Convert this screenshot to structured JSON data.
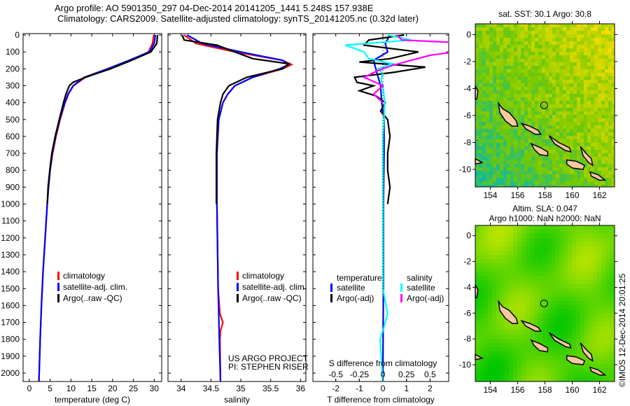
{
  "title": {
    "line1": "Argo profile: AO 5901350_297 04-Dec-2014 20141205_1441 5.248S 157.938E",
    "line2": "Climatology: CARS2009. Satellite-adjusted climatology: synTS_20141205.nc (0.32d later)"
  },
  "timestamp": "©IMOS 12-Dec-2014 20:01:25",
  "colors": {
    "climatology": "#ff0000",
    "satellite": "#0000ff",
    "argo": "#000000",
    "sal_satellite": "#00ffff",
    "sal_argo": "#ff00ff",
    "land": "#f8c8a0"
  },
  "chart_data": {
    "depth_axis": {
      "ylim": [
        0,
        2150
      ],
      "ticks": [
        0,
        100,
        200,
        300,
        400,
        500,
        600,
        700,
        800,
        900,
        1000,
        1100,
        1200,
        1300,
        1400,
        1500,
        1600,
        1700,
        1800,
        1900,
        2000
      ]
    },
    "panels": [
      {
        "id": "temperature",
        "type": "line",
        "xlabel": "temperature (deg C)",
        "xlim": [
          -1.5,
          31.8
        ],
        "xticks": [
          0,
          5,
          10,
          15,
          20,
          25,
          30
        ],
        "legend": [
          "climatology",
          "satellite-adj. clim.",
          "Argo(..raw -QC)"
        ],
        "series": [
          {
            "name": "climatology",
            "color": "#ff0000",
            "depth": [
              0,
              50,
              100,
              150,
              200,
              250,
              300,
              350,
              400,
              500,
              600,
              700,
              800,
              900,
              1000,
              1200,
              1400,
              1600,
              1800,
              2050
            ],
            "values": [
              29.9,
              29.6,
              28.6,
              24.5,
              19.2,
              13.5,
              10.6,
              9.4,
              8.6,
              7.4,
              6.4,
              5.6,
              5.0,
              4.6,
              4.3,
              3.8,
              3.3,
              2.9,
              2.6,
              2.3
            ]
          },
          {
            "name": "satellite-adj. clim.",
            "color": "#0000ff",
            "depth": [
              0,
              50,
              100,
              150,
              200,
              250,
              300,
              350,
              400,
              500,
              600,
              700,
              800,
              900,
              1000,
              1200,
              1400,
              1600,
              1800,
              2050
            ],
            "values": [
              30.3,
              30.0,
              28.8,
              24.0,
              18.8,
              13.2,
              10.5,
              9.3,
              8.5,
              7.3,
              6.3,
              5.5,
              5.0,
              4.6,
              4.3,
              3.8,
              3.3,
              2.9,
              2.6,
              2.3
            ]
          },
          {
            "name": "Argo(..raw -QC)",
            "color": "#000000",
            "depth": [
              0,
              50,
              100,
              150,
              200,
              250,
              280,
              300,
              350,
              400,
              500,
              600,
              700,
              800,
              900,
              1000
            ],
            "values": [
              30.8,
              30.6,
              29.2,
              24.5,
              19.5,
              13.5,
              10.5,
              9.6,
              8.8,
              8.2,
              7.2,
              6.2,
              5.4,
              4.9,
              4.5,
              4.3
            ]
          }
        ]
      },
      {
        "id": "salinity",
        "type": "line",
        "xlabel": "salinity",
        "xlim": [
          33.78,
          36.09
        ],
        "xticks": [
          34,
          34.5,
          35,
          35.5,
          36
        ],
        "legend": [
          "climatology",
          "satellite-adj. clim.",
          "Argo(..raw -QC)"
        ],
        "annotation": [
          "US ARGO PROJECT",
          "PI: STEPHEN RISER"
        ],
        "series": [
          {
            "name": "climatology",
            "color": "#ff0000",
            "depth": [
              0,
              50,
              100,
              150,
              175,
              200,
              250,
              300,
              350,
              400,
              500,
              700,
              1000,
              1500,
              1650,
              1700,
              1750,
              1800,
              2050
            ],
            "values": [
              34.05,
              34.25,
              34.9,
              35.7,
              35.85,
              35.7,
              35.2,
              34.9,
              34.78,
              34.7,
              34.63,
              34.6,
              34.6,
              34.62,
              34.65,
              34.7,
              34.66,
              34.65,
              34.66
            ]
          },
          {
            "name": "satellite-adj. clim.",
            "color": "#0000ff",
            "depth": [
              0,
              50,
              100,
              150,
              175,
              200,
              250,
              300,
              350,
              400,
              500,
              700,
              1000,
              1500,
              1800,
              2050
            ],
            "values": [
              34.1,
              34.35,
              35.0,
              35.7,
              35.8,
              35.65,
              35.2,
              34.9,
              34.78,
              34.7,
              34.63,
              34.6,
              34.6,
              34.62,
              34.64,
              34.66
            ]
          },
          {
            "name": "Argo(..raw -QC)",
            "color": "#000000",
            "depth": [
              0,
              30,
              60,
              100,
              140,
              170,
              200,
              250,
              300,
              350,
              400,
              500,
              700,
              1000
            ],
            "values": [
              34.02,
              34.05,
              34.6,
              34.9,
              35.2,
              35.8,
              35.7,
              35.1,
              34.8,
              34.7,
              34.66,
              34.61,
              34.59,
              34.59
            ]
          }
        ]
      },
      {
        "id": "difference",
        "type": "line",
        "xlabel": "T difference from climatology",
        "xlabel2": "S difference from climatology",
        "xlim": [
          -2.97,
          2.79
        ],
        "xticks": [
          -2,
          -1,
          0,
          1,
          2
        ],
        "xticks2": [
          -0.5,
          -0.25,
          0,
          0.25,
          0.5
        ],
        "legend_temperature": {
          "heading": "temperature",
          "items": [
            "satellite",
            "Argo(-adj)"
          ]
        },
        "legend_salinity": {
          "heading": "salinity",
          "items": [
            "satellite",
            "Argo(-adj)"
          ]
        },
        "series": [
          {
            "name": "T satellite",
            "color": "#0000ff",
            "depth": [
              0,
              50,
              100,
              150,
              200,
              250,
              300,
              400,
              500,
              700,
              1000,
              1500,
              2000,
              2050
            ],
            "values": [
              0.3,
              0.1,
              0.2,
              -0.4,
              -0.3,
              -0.2,
              -0.1,
              -0.05,
              0.05,
              0.05,
              0.02,
              0.02,
              0.0,
              0.0
            ]
          },
          {
            "name": "T Argo(-adj)",
            "color": "#000000",
            "depth": [
              0,
              30,
              60,
              100,
              140,
              160,
              190,
              220,
              250,
              280,
              300,
              330,
              360,
              400,
              450,
              500,
              600,
              700,
              800,
              900,
              1000
            ],
            "values": [
              0.9,
              -0.6,
              -0.8,
              1.5,
              0.3,
              -1.0,
              1.8,
              0.5,
              -1.2,
              -1.1,
              -0.4,
              -1.0,
              -0.3,
              0.1,
              -0.1,
              0.2,
              0.3,
              0.2,
              0.2,
              0.3,
              0.2
            ]
          },
          {
            "name": "S satellite",
            "color": "#00ffff",
            "depth": [
              0,
              30,
              60,
              100,
              140,
              170,
              200,
              230,
              260,
              300,
              400,
              600,
              900,
              1200,
              1500,
              1650,
              1750,
              1800,
              2050
            ],
            "values": [
              0.05,
              0.3,
              -0.4,
              -0.2,
              -0.15,
              0.1,
              -0.05,
              0.0,
              -0.02,
              0.0,
              0.02,
              0.0,
              0.0,
              0.0,
              0.0,
              0.05,
              0.0,
              -0.03,
              0.0
            ]
          },
          {
            "name": "S Argo(-adj)",
            "color": "#ff00ff",
            "depth": [
              0,
              30,
              60,
              90,
              120,
              150,
              180,
              210,
              250,
              300,
              350,
              400
            ],
            "values": [
              0.15,
              0.2,
              1.4,
              0.9,
              0.5,
              0.3,
              0.1,
              -0.05,
              -0.2,
              0.0,
              -0.1,
              0.0
            ]
          }
        ]
      }
    ],
    "maps": [
      {
        "id": "sst",
        "title": [
          "sat. SST: 30.1 Argo: 30.8"
        ],
        "style": "pixel",
        "lon_ticks": [
          154,
          156,
          158,
          160,
          162
        ],
        "lat_ticks": [
          0,
          -2,
          -4,
          -6,
          -8,
          -10
        ],
        "lon_range": [
          152.9,
          163.1
        ],
        "lat_range": [
          0.8,
          -11.3
        ],
        "profile": {
          "lon": 157.938,
          "lat": -5.248
        }
      },
      {
        "id": "sla",
        "title": [
          "Altim. SLA: 0.047",
          "Argo h1000: NaN h2000: NaN"
        ],
        "style": "smooth",
        "lon_ticks": [
          154,
          156,
          158,
          160,
          162
        ],
        "lat_ticks": [
          0,
          -2,
          -4,
          -6,
          -8,
          -10
        ],
        "lon_range": [
          152.9,
          163.1
        ],
        "lat_range": [
          0.8,
          -11.3
        ],
        "profile": {
          "lon": 157.938,
          "lat": -5.248
        }
      }
    ],
    "coastlines": [
      [
        [
          154.6,
          -5.1
        ],
        [
          154.9,
          -5.5
        ],
        [
          155.4,
          -5.8
        ],
        [
          155.9,
          -6.4
        ],
        [
          156.0,
          -6.8
        ],
        [
          155.6,
          -6.8
        ],
        [
          155.1,
          -6.4
        ],
        [
          154.7,
          -5.8
        ]
      ],
      [
        [
          156.3,
          -6.6
        ],
        [
          156.9,
          -6.8
        ],
        [
          157.5,
          -7.1
        ],
        [
          157.7,
          -7.4
        ],
        [
          157.3,
          -7.4
        ],
        [
          156.6,
          -7.0
        ]
      ],
      [
        [
          158.3,
          -7.5
        ],
        [
          159.0,
          -8.0
        ],
        [
          159.8,
          -8.4
        ],
        [
          159.9,
          -8.7
        ],
        [
          159.5,
          -8.6
        ],
        [
          158.7,
          -8.1
        ]
      ],
      [
        [
          160.6,
          -8.3
        ],
        [
          161.0,
          -8.8
        ],
        [
          161.4,
          -9.2
        ],
        [
          161.5,
          -9.7
        ],
        [
          161.2,
          -9.5
        ],
        [
          160.8,
          -9.0
        ]
      ],
      [
        [
          159.6,
          -9.3
        ],
        [
          160.3,
          -9.4
        ],
        [
          160.9,
          -9.7
        ],
        [
          160.8,
          -10.0
        ],
        [
          160.0,
          -9.9
        ],
        [
          159.6,
          -9.6
        ]
      ],
      [
        [
          161.3,
          -10.2
        ],
        [
          161.9,
          -10.4
        ],
        [
          162.4,
          -10.8
        ],
        [
          162.0,
          -10.8
        ],
        [
          161.4,
          -10.5
        ]
      ],
      [
        [
          157.0,
          -8.1
        ],
        [
          157.7,
          -8.4
        ],
        [
          158.2,
          -8.7
        ],
        [
          158.2,
          -9.0
        ],
        [
          157.6,
          -8.9
        ],
        [
          157.2,
          -8.5
        ]
      ],
      [
        [
          152.9,
          -3.8
        ],
        [
          153.1,
          -4.2
        ],
        [
          153.0,
          -4.8
        ],
        [
          152.9,
          -4.8
        ]
      ],
      [
        [
          152.9,
          -9.2
        ],
        [
          153.4,
          -9.5
        ],
        [
          152.9,
          -9.6
        ]
      ]
    ]
  }
}
